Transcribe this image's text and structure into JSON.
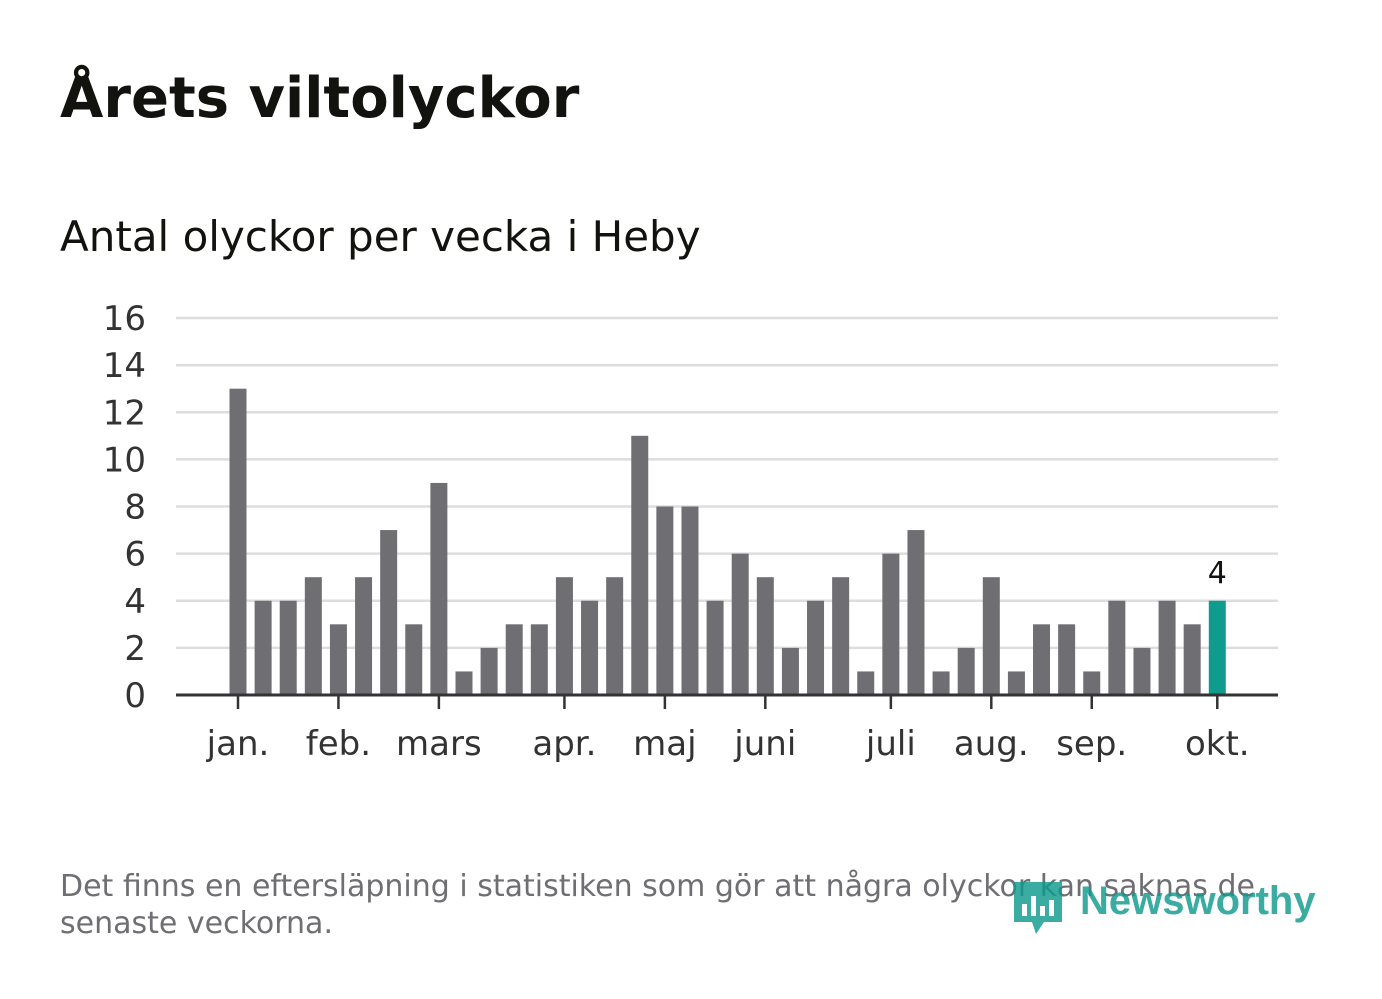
{
  "header": {
    "title": "Årets viltolyckor",
    "subtitle": "Antal olyckor per vecka i Heby"
  },
  "footnote": "Det finns en eftersläpning i statistiken som gör att några olyckor kan saknas de senaste veckorna.",
  "logo": {
    "text": "Newsworthy"
  },
  "colors": {
    "bar": "#6f6e73",
    "highlight": "#0f9b8e",
    "grid": "#dddddd",
    "axis": "#333333",
    "text": "#333333"
  },
  "chart_data": {
    "type": "bar",
    "title": "Årets viltolyckor",
    "subtitle": "Antal olyckor per vecka i Heby",
    "xlabel": "",
    "ylabel": "",
    "ylim": [
      0,
      16
    ],
    "yticks": [
      0,
      2,
      4,
      6,
      8,
      10,
      12,
      14,
      16
    ],
    "grid": true,
    "weeks": [
      1,
      2,
      3,
      4,
      5,
      6,
      7,
      8,
      9,
      10,
      11,
      12,
      13,
      14,
      15,
      16,
      17,
      18,
      19,
      20,
      21,
      22,
      23,
      24,
      25,
      26,
      27,
      28,
      29,
      30,
      31,
      32,
      33,
      34,
      35,
      36,
      37,
      38,
      39,
      40
    ],
    "values": [
      13,
      4,
      4,
      5,
      3,
      5,
      7,
      3,
      9,
      1,
      2,
      3,
      3,
      5,
      4,
      5,
      11,
      8,
      8,
      4,
      6,
      5,
      2,
      4,
      5,
      1,
      6,
      7,
      1,
      2,
      5,
      1,
      3,
      3,
      1,
      4,
      2,
      4,
      3,
      4
    ],
    "highlight_index": 39,
    "highlight_label": "4",
    "month_ticks": [
      {
        "label": "jan.",
        "position": 0
      },
      {
        "label": "feb.",
        "position": 4
      },
      {
        "label": "mars",
        "position": 8
      },
      {
        "label": "apr.",
        "position": 13
      },
      {
        "label": "maj",
        "position": 17
      },
      {
        "label": "juni",
        "position": 21
      },
      {
        "label": "juli",
        "position": 26
      },
      {
        "label": "aug.",
        "position": 30
      },
      {
        "label": "sep.",
        "position": 34
      },
      {
        "label": "okt.",
        "position": 39
      }
    ]
  }
}
